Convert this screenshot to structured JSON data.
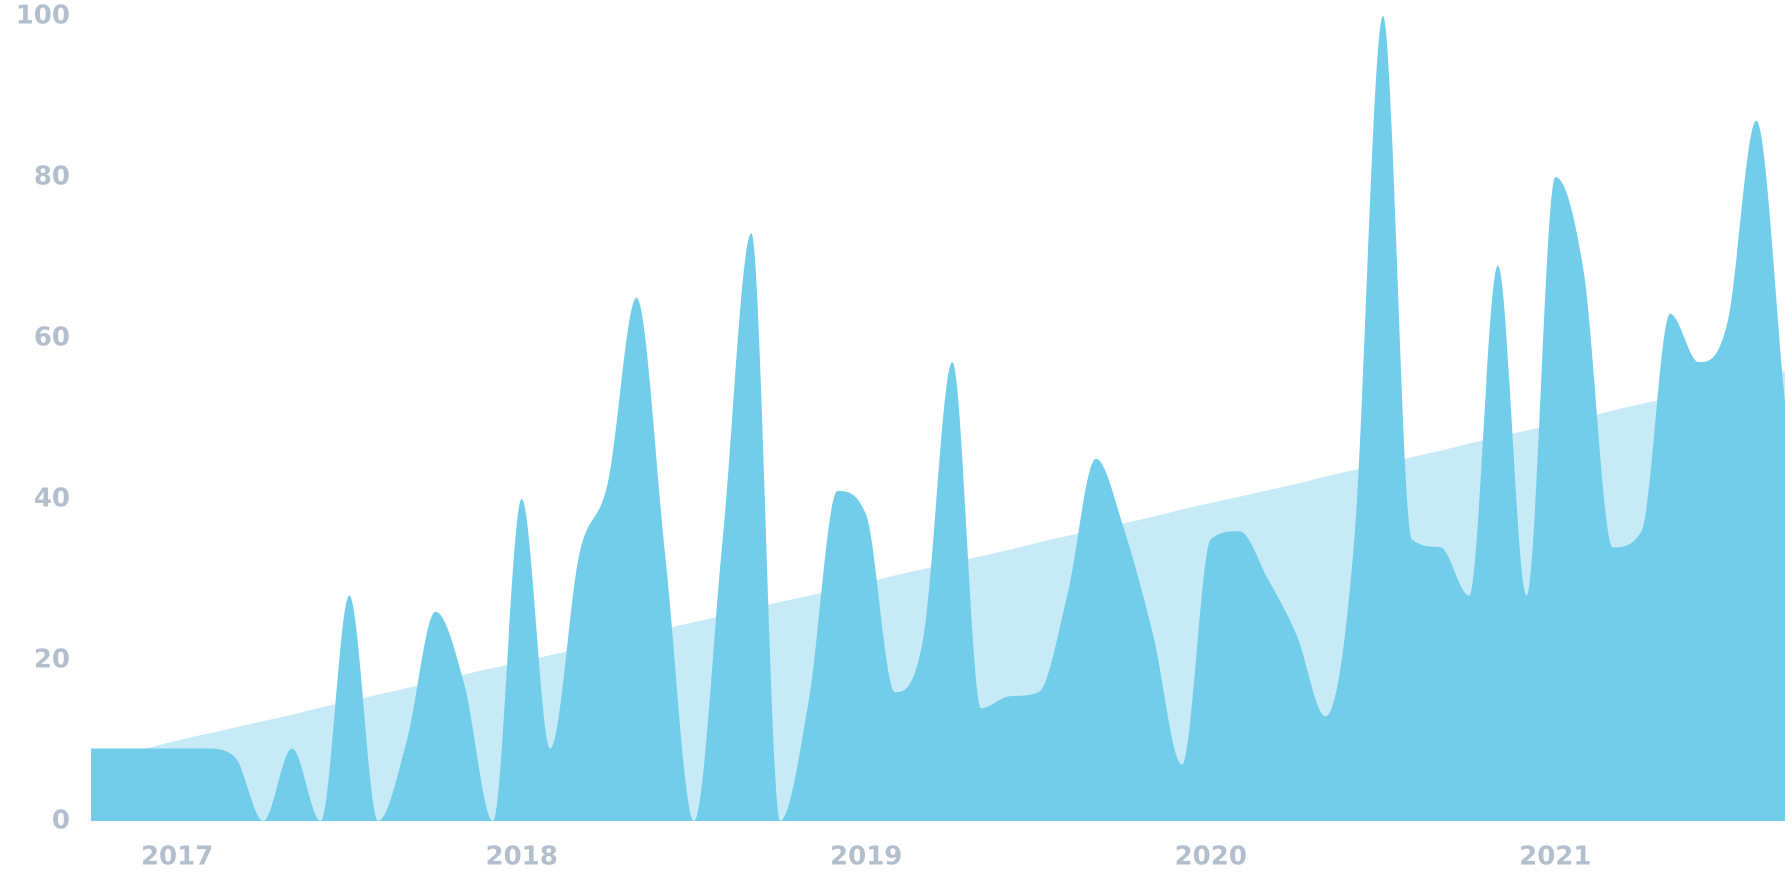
{
  "chart_data": {
    "type": "area",
    "categories": [
      null,
      null,
      null,
      "2017",
      null,
      null,
      null,
      null,
      null,
      null,
      null,
      null,
      null,
      null,
      null,
      "2018",
      null,
      null,
      null,
      null,
      null,
      null,
      null,
      null,
      null,
      null,
      null,
      "2019",
      null,
      null,
      null,
      null,
      null,
      null,
      null,
      null,
      null,
      null,
      null,
      "2020",
      null,
      null,
      null,
      null,
      null,
      null,
      null,
      null,
      null,
      null,
      null,
      "2021",
      null,
      null,
      null,
      null,
      null,
      null,
      null,
      null
    ],
    "series": [
      {
        "color": "#c6eaf6",
        "values": [
          7.5,
          8.3,
          9.1,
          10,
          10.8,
          11.6,
          12.4,
          13.2,
          14.1,
          14.9,
          15.7,
          16.5,
          17.3,
          18.2,
          19,
          19.8,
          20.6,
          21.4,
          22.3,
          23.1,
          23.9,
          24.7,
          25.5,
          26.4,
          27.2,
          28,
          28.8,
          29.6,
          30.5,
          31.3,
          32.1,
          32.9,
          33.7,
          34.6,
          35.4,
          36.2,
          37,
          37.8,
          38.7,
          39.5,
          40.3,
          41.1,
          41.9,
          42.8,
          43.6,
          44.4,
          45.2,
          46,
          46.9,
          47.7,
          48.5,
          49.3,
          50.1,
          51,
          51.8,
          52.6,
          53.4,
          54.2,
          55.1,
          55.9
        ]
      },
      {
        "color": "#72cdea",
        "values": [
          9,
          9,
          9,
          9,
          9,
          8,
          0,
          9,
          0,
          28,
          0,
          10,
          26,
          17,
          0,
          40,
          9,
          33,
          42,
          65,
          33,
          0,
          35,
          73,
          0,
          15,
          41,
          38,
          16,
          23,
          57,
          14,
          15.5,
          16,
          28,
          45,
          36,
          23,
          7,
          35,
          36,
          30,
          23,
          13,
          35,
          100,
          35,
          34,
          28,
          69,
          28,
          80,
          68,
          34,
          36,
          63,
          57,
          62,
          87,
          52
        ]
      }
    ],
    "ylim": [
      0,
      100
    ],
    "yticks": [
      0,
      20,
      40,
      60,
      80,
      100
    ],
    "grid": false
  }
}
